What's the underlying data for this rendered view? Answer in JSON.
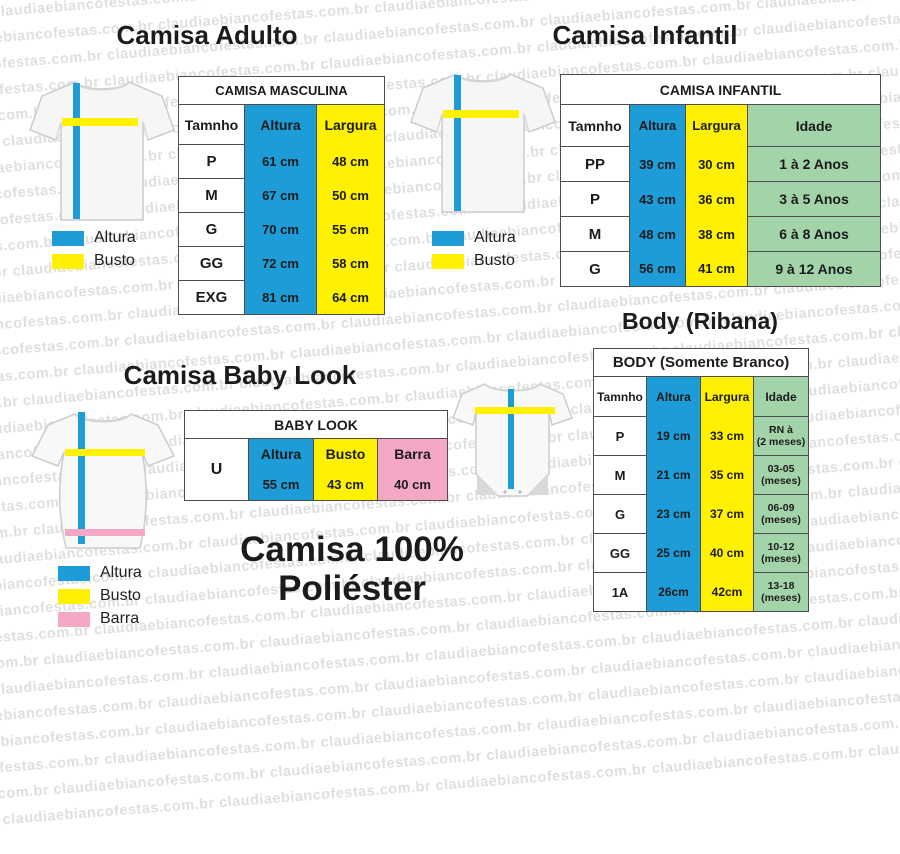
{
  "watermark": {
    "text": "claudiaebiancofestas.com.br"
  },
  "colors": {
    "blue": "#1E9CD8",
    "yellow": "#FFF101",
    "green": "#A3D4A9",
    "pink": "#F4A8C6"
  },
  "sections": {
    "adult": {
      "title": "Camisa Adulto"
    },
    "infantil": {
      "title": "Camisa Infantil"
    },
    "babylook": {
      "title": "Camisa Baby Look"
    },
    "body": {
      "title": "Body (Ribana)"
    }
  },
  "legends": {
    "adult": [
      {
        "label": "Altura"
      },
      {
        "label": "Busto"
      }
    ],
    "infantil": [
      {
        "label": "Altura"
      },
      {
        "label": "Busto"
      }
    ],
    "babylook": [
      {
        "label": "Altura"
      },
      {
        "label": "Busto"
      },
      {
        "label": "Barra"
      }
    ]
  },
  "tables": {
    "masculina": {
      "title": "CAMISA MASCULINA",
      "headers": {
        "size": "Tamnho",
        "altura": "Altura",
        "largura": "Largura"
      },
      "rows": [
        {
          "size": "P",
          "altura": "61 cm",
          "largura": "48 cm"
        },
        {
          "size": "M",
          "altura": "67 cm",
          "largura": "50 cm"
        },
        {
          "size": "G",
          "altura": "70 cm",
          "largura": "55 cm"
        },
        {
          "size": "GG",
          "altura": "72 cm",
          "largura": "58 cm"
        },
        {
          "size": "EXG",
          "altura": "81 cm",
          "largura": "64 cm"
        }
      ]
    },
    "infantil": {
      "title": "CAMISA INFANTIL",
      "headers": {
        "size": "Tamnho",
        "altura": "Altura",
        "largura": "Largura",
        "idade": "Idade"
      },
      "rows": [
        {
          "size": "PP",
          "altura": "39 cm",
          "largura": "30 cm",
          "idade": "1 à 2 Anos"
        },
        {
          "size": "P",
          "altura": "43 cm",
          "largura": "36 cm",
          "idade": "3 à 5 Anos"
        },
        {
          "size": "M",
          "altura": "48 cm",
          "largura": "38 cm",
          "idade": "6 à 8 Anos"
        },
        {
          "size": "G",
          "altura": "56 cm",
          "largura": "41 cm",
          "idade": "9 à 12 Anos"
        }
      ]
    },
    "babylook": {
      "title": "BABY LOOK",
      "size_value": "U",
      "headers": {
        "altura": "Altura",
        "busto": "Busto",
        "barra": "Barra"
      },
      "values": {
        "altura": "55 cm",
        "busto": "43 cm",
        "barra": "40 cm"
      }
    },
    "body": {
      "title": "BODY (Somente Branco)",
      "headers": {
        "size": "Tamnho",
        "altura": "Altura",
        "largura": "Largura",
        "idade": "Idade"
      },
      "rows": [
        {
          "size": "P",
          "altura": "19 cm",
          "largura": "33 cm",
          "idade": "RN à\n(2 meses)"
        },
        {
          "size": "M",
          "altura": "21 cm",
          "largura": "35 cm",
          "idade": "03-05\n(meses)"
        },
        {
          "size": "G",
          "altura": "23 cm",
          "largura": "37 cm",
          "idade": "06-09\n(meses)"
        },
        {
          "size": "GG",
          "altura": "25 cm",
          "largura": "40 cm",
          "idade": "10-12\n(meses)"
        },
        {
          "size": "1A",
          "altura": "26cm",
          "largura": "42cm",
          "idade": "13-18\n(meses)"
        }
      ]
    }
  },
  "footer": {
    "line1": "Camisa 100%",
    "line2": "Poliéster"
  }
}
